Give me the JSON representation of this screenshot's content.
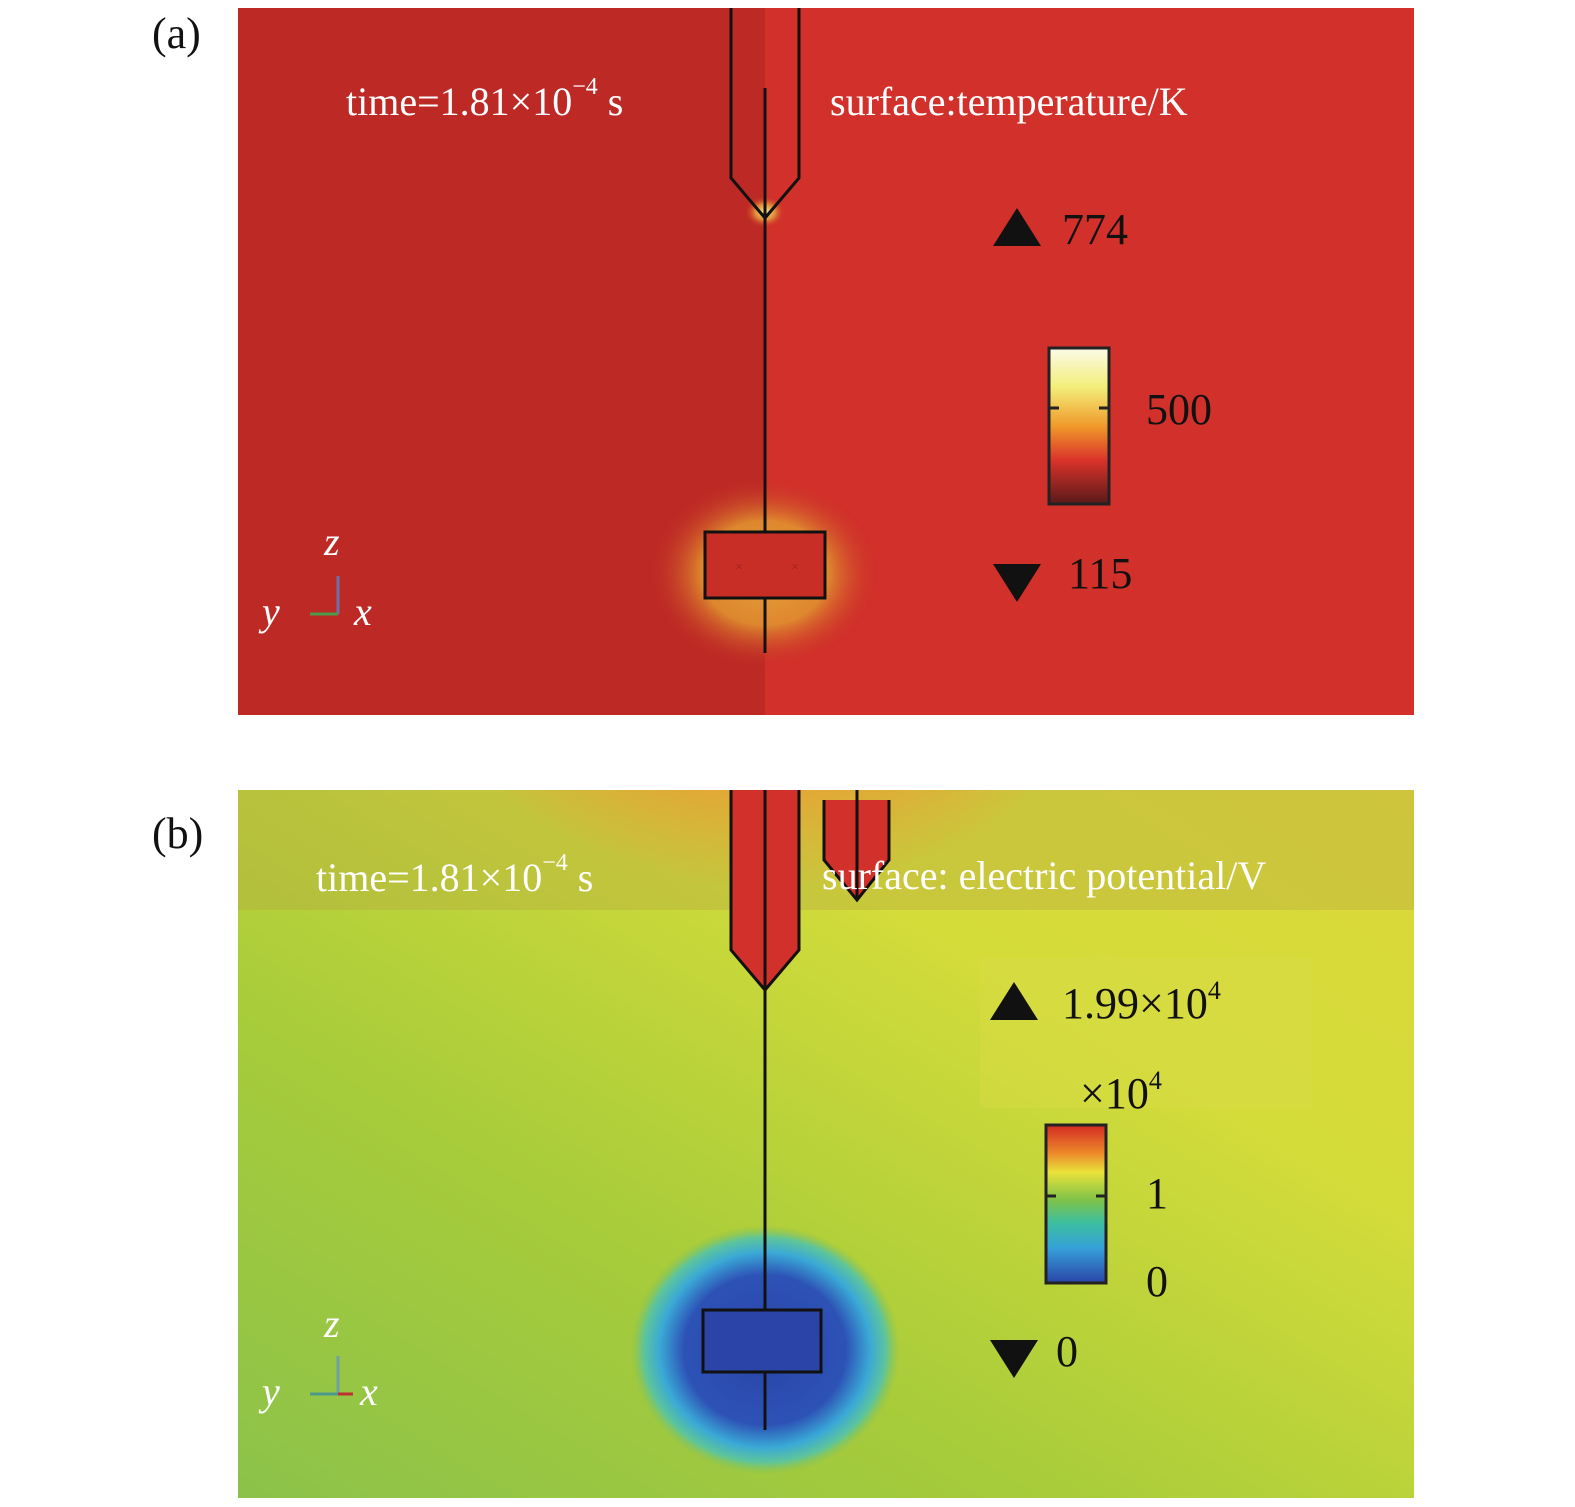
{
  "panels": [
    {
      "label": "(a)",
      "time_text": "time=1.81×10",
      "time_exp": "−4",
      "time_unit": " s",
      "surface_text": "surface:temperature/K",
      "max_value": "774",
      "colorbar_mid": "500",
      "min_value": "115",
      "axis_z": "z",
      "axis_y": "y",
      "axis_x": "x",
      "colors": {
        "background": "#cf3026",
        "hot": "#f6f29a"
      }
    },
    {
      "label": "(b)",
      "time_text": "time=1.81×10",
      "time_exp": "−4",
      "time_unit": " s",
      "surface_text": "surface: electric potential/V",
      "max_value": "1.99×10",
      "max_exp": "4",
      "multiplier": "×10",
      "multiplier_exp": "4",
      "colorbar_high": "1",
      "colorbar_low": "0",
      "min_value": "0",
      "axis_z": "z",
      "axis_y": "y",
      "axis_x": "x",
      "colors": {
        "background": "#d2da3c",
        "low": "#2a44a8",
        "high": "#d83225"
      }
    }
  ]
}
